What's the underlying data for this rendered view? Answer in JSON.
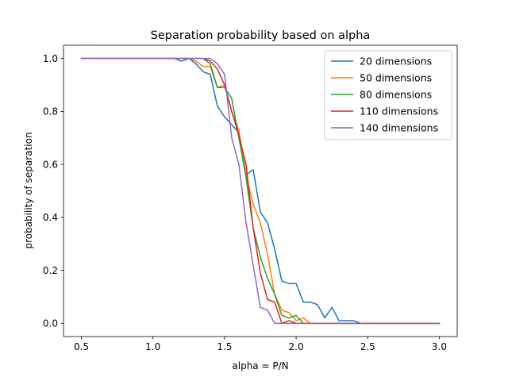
{
  "chart_data": {
    "type": "line",
    "title": "Separation probability based on alpha",
    "xlabel": "alpha = P/N",
    "ylabel": "probability of separation",
    "xlim": [
      0.375,
      3.125
    ],
    "ylim": [
      -0.05,
      1.05
    ],
    "xticks": [
      0.5,
      1.0,
      1.5,
      2.0,
      2.5,
      3.0
    ],
    "xtick_labels": [
      "0.5",
      "1.0",
      "1.5",
      "2.0",
      "2.5",
      "3.0"
    ],
    "yticks": [
      0.0,
      0.2,
      0.4,
      0.6,
      0.8,
      1.0
    ],
    "ytick_labels": [
      "0.0",
      "0.2",
      "0.4",
      "0.6",
      "0.8",
      "1.0"
    ],
    "grid": false,
    "legend_position": "top-right",
    "x": [
      0.5,
      0.55,
      0.6,
      0.65,
      0.7,
      0.75,
      0.8,
      0.85,
      0.9,
      0.95,
      1.0,
      1.05,
      1.1,
      1.15,
      1.2,
      1.25,
      1.3,
      1.35,
      1.4,
      1.45,
      1.5,
      1.55,
      1.6,
      1.65,
      1.7,
      1.75,
      1.8,
      1.85,
      1.9,
      1.95,
      2.0,
      2.05,
      2.1,
      2.15,
      2.2,
      2.25,
      2.3,
      2.35,
      2.4,
      2.45,
      2.5,
      2.55,
      2.6,
      2.65,
      2.7,
      2.75,
      2.8,
      2.85,
      2.9,
      2.95,
      3.0
    ],
    "series": [
      {
        "name": "20 dimensions",
        "color": "#1f77b4",
        "values": [
          1.0,
          1.0,
          1.0,
          1.0,
          1.0,
          1.0,
          1.0,
          1.0,
          1.0,
          1.0,
          1.0,
          1.0,
          1.0,
          1.0,
          0.99,
          1.0,
          0.98,
          0.95,
          0.94,
          0.82,
          0.78,
          0.75,
          0.72,
          0.56,
          0.58,
          0.42,
          0.38,
          0.28,
          0.16,
          0.15,
          0.15,
          0.08,
          0.08,
          0.07,
          0.02,
          0.06,
          0.01,
          0.01,
          0.01,
          0.0,
          0.0,
          0.0,
          0.0,
          0.0,
          0.0,
          0.0,
          0.0,
          0.0,
          0.0,
          0.0,
          0.0
        ]
      },
      {
        "name": "50 dimensions",
        "color": "#ff7f0e",
        "values": [
          1.0,
          1.0,
          1.0,
          1.0,
          1.0,
          1.0,
          1.0,
          1.0,
          1.0,
          1.0,
          1.0,
          1.0,
          1.0,
          1.0,
          1.0,
          1.0,
          0.99,
          0.97,
          0.97,
          0.89,
          0.9,
          0.8,
          0.73,
          0.56,
          0.45,
          0.38,
          0.26,
          0.11,
          0.05,
          0.04,
          0.01,
          0.02,
          0.0,
          0.0,
          0.0,
          0.0,
          0.0,
          0.0,
          0.0,
          0.0,
          0.0,
          0.0,
          0.0,
          0.0,
          0.0,
          0.0,
          0.0,
          0.0,
          0.0,
          0.0,
          0.0
        ]
      },
      {
        "name": "80 dimensions",
        "color": "#2ca02c",
        "values": [
          1.0,
          1.0,
          1.0,
          1.0,
          1.0,
          1.0,
          1.0,
          1.0,
          1.0,
          1.0,
          1.0,
          1.0,
          1.0,
          1.0,
          1.0,
          1.0,
          1.0,
          1.0,
          0.98,
          0.89,
          0.89,
          0.85,
          0.7,
          0.55,
          0.36,
          0.25,
          0.17,
          0.11,
          0.03,
          0.02,
          0.03,
          0.0,
          0.0,
          0.0,
          0.0,
          0.0,
          0.0,
          0.0,
          0.0,
          0.0,
          0.0,
          0.0,
          0.0,
          0.0,
          0.0,
          0.0,
          0.0,
          0.0,
          0.0,
          0.0,
          0.0
        ]
      },
      {
        "name": "110 dimensions",
        "color": "#d62728",
        "values": [
          1.0,
          1.0,
          1.0,
          1.0,
          1.0,
          1.0,
          1.0,
          1.0,
          1.0,
          1.0,
          1.0,
          1.0,
          1.0,
          1.0,
          1.0,
          1.0,
          1.0,
          1.0,
          0.99,
          0.96,
          0.9,
          0.8,
          0.71,
          0.6,
          0.36,
          0.19,
          0.09,
          0.08,
          0.0,
          0.01,
          0.0,
          0.0,
          0.0,
          0.0,
          0.0,
          0.0,
          0.0,
          0.0,
          0.0,
          0.0,
          0.0,
          0.0,
          0.0,
          0.0,
          0.0,
          0.0,
          0.0,
          0.0,
          0.0,
          0.0,
          0.0
        ]
      },
      {
        "name": "140 dimensions",
        "color": "#9467bd",
        "values": [
          1.0,
          1.0,
          1.0,
          1.0,
          1.0,
          1.0,
          1.0,
          1.0,
          1.0,
          1.0,
          1.0,
          1.0,
          1.0,
          1.0,
          1.0,
          1.0,
          1.0,
          1.0,
          1.0,
          0.98,
          0.94,
          0.7,
          0.6,
          0.38,
          0.22,
          0.06,
          0.05,
          0.0,
          0.0,
          0.0,
          0.0,
          0.0,
          0.0,
          0.0,
          0.0,
          0.0,
          0.0,
          0.0,
          0.0,
          0.0,
          0.0,
          0.0,
          0.0,
          0.0,
          0.0,
          0.0,
          0.0,
          0.0,
          0.0,
          0.0,
          0.0
        ]
      }
    ]
  }
}
